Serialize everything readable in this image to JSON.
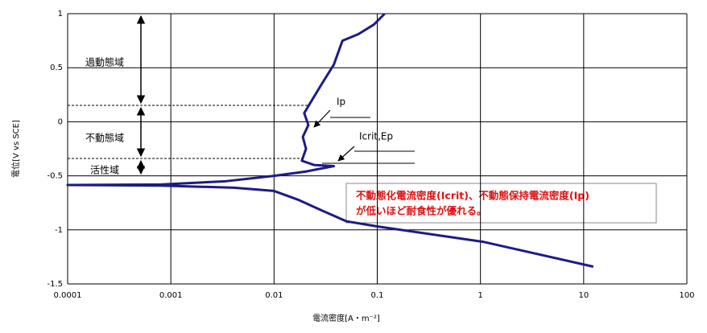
{
  "chart_data": {
    "type": "line",
    "x_label": "電流密度[A・m⁻²]",
    "y_label": "電位[V vs SCE]",
    "x_log": true,
    "grid": true,
    "xlim": [
      0.0001,
      100
    ],
    "xticks": [
      0.0001,
      0.001,
      0.01,
      0.1,
      1,
      10,
      100
    ],
    "ylim": [
      -1.5,
      1
    ],
    "yticks": [
      -1.5,
      -1,
      -0.5,
      0,
      0.5,
      1
    ],
    "series": [
      {
        "color": "#1c1c84",
        "x": [
          12.4,
          1.06,
          0.103,
          0.05,
          0.029,
          0.017,
          0.01,
          0.0041,
          0.0008,
          0.0001,
          0.0008,
          0.0034,
          0.01,
          0.0204,
          0.038,
          0.0245,
          0.0186,
          0.0204,
          0.019,
          0.0215,
          0.0196,
          0.0223,
          0.029,
          0.038,
          0.046,
          0.0655,
          0.093,
          0.118
        ],
        "values": [
          -1.34,
          -1.11,
          -0.97,
          -0.92,
          -0.82,
          -0.72,
          -0.64,
          -0.61,
          -0.59,
          -0.585,
          -0.58,
          -0.55,
          -0.5,
          -0.46,
          -0.41,
          -0.4,
          -0.36,
          -0.25,
          -0.14,
          -0.03,
          0.08,
          0.17,
          0.35,
          0.53,
          0.75,
          0.81,
          0.9,
          1.0
        ]
      }
    ],
    "annotations": [
      "過動態域",
      "不動態域",
      "活性域",
      "Ip",
      "Icrit,Ep"
    ],
    "note_lines": [
      "不動態化電流密度(Icrit)、不動態保持電流密度(Ip)",
      "が低いほど耐食性が優れる。"
    ]
  }
}
